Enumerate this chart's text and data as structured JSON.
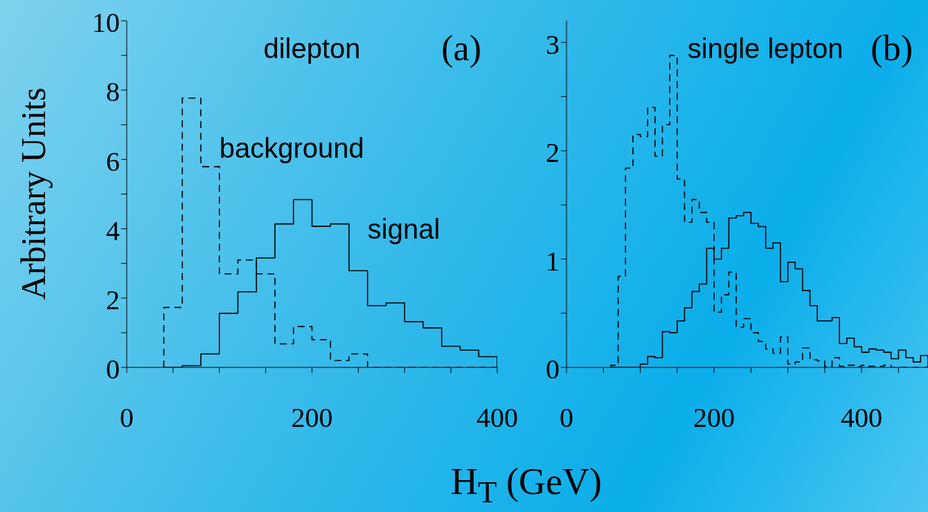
{
  "chart_data": [
    {
      "type": "histogram",
      "title": "dilepton",
      "ylabel": "Arbitrary Units",
      "xlabel": "H$_{T}$  (GeV)",
      "annotations": [
        "(a)"
      ],
      "xlim": [
        0,
        400
      ],
      "xticks": [
        0,
        {
          "value": 50,
          "label": null
        },
        {
          "value": 100,
          "label": null
        },
        {
          "value": 150,
          "label": null
        },
        200,
        {
          "value": 250,
          "label": null
        },
        {
          "value": 300,
          "label": null
        },
        {
          "value": 350,
          "label": null
        },
        400
      ],
      "ylim": [
        0,
        10
      ],
      "yticks": [
        0,
        {
          "value": 1,
          "label": null
        },
        2,
        {
          "value": 3,
          "label": null
        },
        4,
        {
          "value": 5,
          "label": null
        },
        6,
        {
          "value": 7,
          "label": null
        },
        8,
        {
          "value": 9,
          "label": null
        },
        10
      ],
      "bins": [
        40,
        60,
        80,
        100,
        120,
        140,
        160,
        180,
        200,
        220,
        240,
        260,
        280,
        300,
        320,
        340,
        360,
        380,
        400
      ],
      "series": [
        {
          "name": "background",
          "color": "#000000",
          "line_style": "dashed",
          "values": [
            1.73,
            7.77,
            5.79,
            2.7,
            3.1,
            2.7,
            0.68,
            1.18,
            0.8,
            0.2,
            0.39,
            0,
            0,
            0,
            0,
            0,
            0,
            0
          ]
        },
        {
          "name": "signal",
          "color": "#000000",
          "line_style": "solid",
          "values": [
            0,
            0.05,
            0.39,
            1.56,
            2.18,
            3.16,
            4.14,
            4.84,
            4.07,
            4.14,
            2.79,
            1.78,
            1.86,
            1.32,
            1.14,
            0.61,
            0.5,
            0.31
          ]
        }
      ]
    },
    {
      "type": "histogram",
      "title": "single lepton",
      "annotations": [
        "(b)"
      ],
      "xlim": [
        0,
        490
      ],
      "xticks": [
        0,
        {
          "value": 50,
          "label": null
        },
        {
          "value": 100,
          "label": null
        },
        {
          "value": 150,
          "label": null
        },
        200,
        {
          "value": 250,
          "label": null
        },
        {
          "value": 300,
          "label": null
        },
        {
          "value": 350,
          "label": null
        },
        400,
        {
          "value": 450,
          "label": null
        }
      ],
      "ylim": [
        0,
        3.2
      ],
      "yticks": [
        0,
        {
          "value": 0.5,
          "label": null
        },
        1,
        {
          "value": 1.5,
          "label": null
        },
        2,
        {
          "value": 2.5,
          "label": null
        },
        3
      ],
      "bins": [
        60,
        70,
        80,
        90,
        100,
        110,
        120,
        130,
        140,
        150,
        160,
        170,
        180,
        190,
        200,
        210,
        220,
        230,
        240,
        250,
        260,
        270,
        280,
        290,
        300,
        310,
        320,
        330,
        340,
        350,
        360,
        370,
        380,
        390,
        400,
        410,
        420,
        430,
        440,
        450,
        460,
        470,
        480,
        490
      ],
      "series": [
        {
          "color": "#000000",
          "line_style": "dashed",
          "values": [
            0.02,
            0.84,
            1.84,
            2.15,
            2.13,
            2.4,
            1.95,
            2.24,
            2.88,
            1.74,
            1.34,
            1.55,
            1.43,
            1.34,
            0.51,
            0.67,
            0.88,
            0.37,
            0.45,
            0.32,
            0.24,
            0.17,
            0.13,
            0.28,
            0.03,
            0.05,
            0.18,
            0.07,
            0.06,
            0.01,
            0.09,
            0.01,
            0.02,
            0.01,
            0.02,
            0.01,
            0.01,
            0.02,
            0,
            0,
            0,
            0,
            0
          ]
        },
        {
          "color": "#000000",
          "line_style": "solid",
          "values": [
            0,
            0,
            0,
            0,
            0.03,
            0.1,
            0.09,
            0.33,
            0.32,
            0.43,
            0.55,
            0.7,
            0.77,
            1.1,
            1.0,
            1.1,
            1.38,
            1.4,
            1.43,
            1.33,
            1.3,
            1.1,
            1.15,
            0.79,
            0.97,
            0.91,
            0.71,
            0.57,
            0.43,
            0.43,
            0.46,
            0.22,
            0.27,
            0.19,
            0.14,
            0.17,
            0.16,
            0.14,
            0.08,
            0.16,
            0.09,
            0.05,
            0.11
          ]
        }
      ]
    }
  ]
}
